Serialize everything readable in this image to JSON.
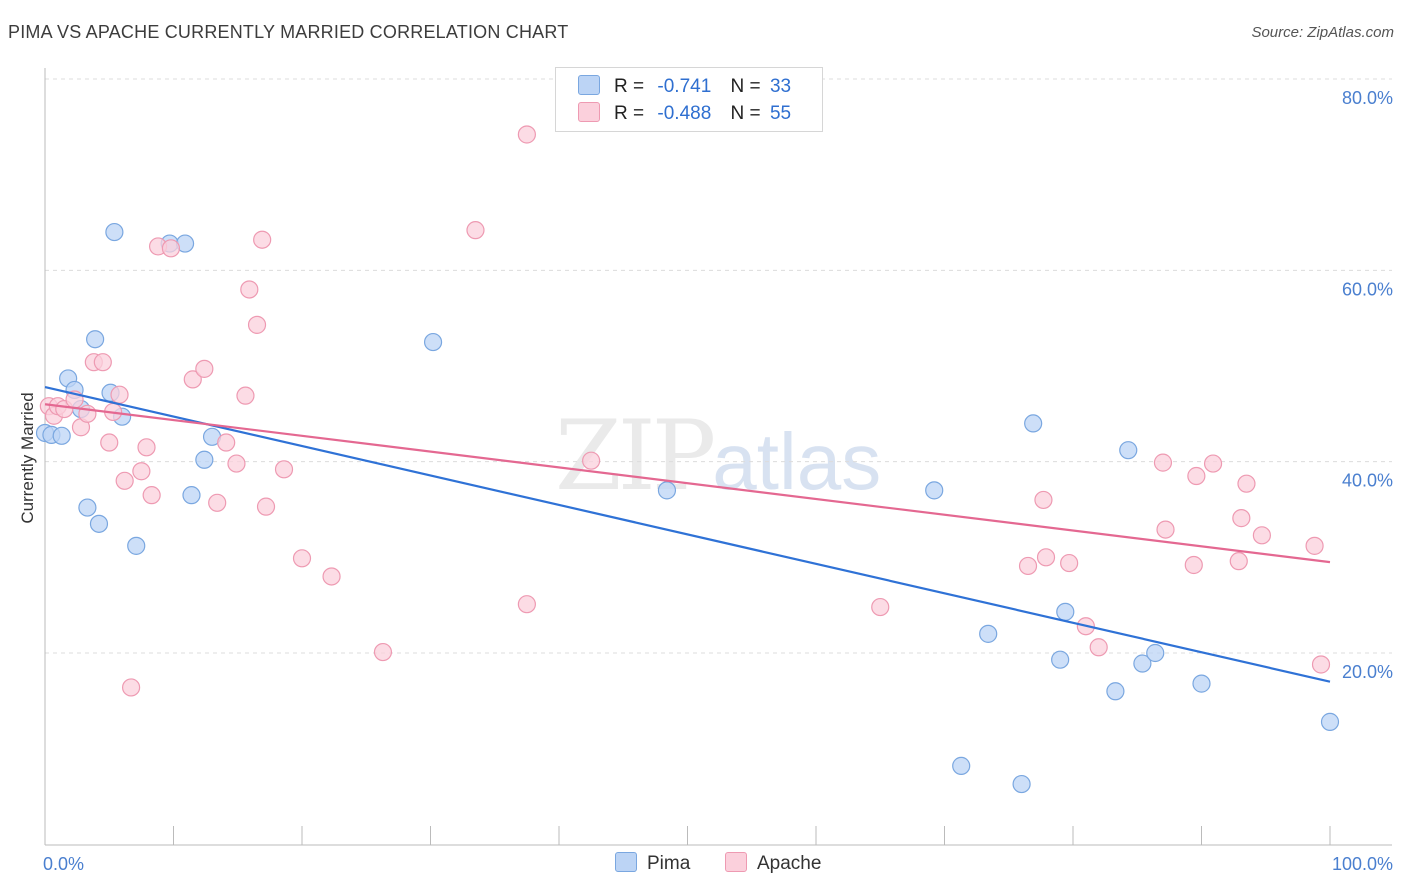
{
  "header": {
    "title": "PIMA VS APACHE CURRENTLY MARRIED CORRELATION CHART",
    "source": "Source: ZipAtlas.com"
  },
  "watermark": {
    "zip": "ZIP",
    "atlas": "atlas"
  },
  "legend": {
    "rows": [
      {
        "r_label": "R =",
        "r_value": "-0.741",
        "n_label": "N =",
        "n_value": "33"
      },
      {
        "r_label": "R =",
        "r_value": "-0.488",
        "n_label": "N =",
        "n_value": "55"
      }
    ]
  },
  "bottom_legend": {
    "pima": "Pima",
    "apache": "Apache"
  },
  "colors": {
    "pima_fill": "#bcd4f5",
    "pima_stroke": "#7aa7e0",
    "pima_line": "#2f72d6",
    "apache_fill": "#fbd0dc",
    "apache_stroke": "#ee9ab2",
    "apache_line": "#e46891",
    "tick_label": "#4a7fcf",
    "grid": "#dcdcdc"
  },
  "chart_data": {
    "type": "scatter",
    "title": "PIMA VS APACHE CURRENTLY MARRIED CORRELATION CHART",
    "xlabel": "",
    "ylabel": "Currently Married",
    "xlim": [
      0,
      100
    ],
    "ylim": [
      0,
      82
    ],
    "x_tick_labels": [
      "0.0%",
      "100.0%"
    ],
    "y_ticks": [
      20,
      40,
      60,
      80
    ],
    "y_tick_labels": [
      "20.0%",
      "40.0%",
      "60.0%",
      "80.0%"
    ],
    "grid": true,
    "legend_position": "top-center",
    "series": [
      {
        "name": "Pima",
        "r": -0.741,
        "n": 33,
        "trend": {
          "x": [
            0,
            100
          ],
          "y": [
            47.8,
            17.0
          ]
        },
        "points": [
          [
            0.0,
            43.0
          ],
          [
            0.5,
            42.8
          ],
          [
            1.3,
            42.7
          ],
          [
            1.8,
            48.7
          ],
          [
            2.3,
            47.5
          ],
          [
            2.8,
            45.5
          ],
          [
            3.3,
            35.2
          ],
          [
            4.2,
            33.5
          ],
          [
            3.9,
            52.8
          ],
          [
            5.1,
            47.2
          ],
          [
            5.4,
            64.0
          ],
          [
            6.0,
            44.7
          ],
          [
            7.1,
            31.2
          ],
          [
            9.7,
            62.8
          ],
          [
            10.9,
            62.8
          ],
          [
            11.4,
            36.5
          ],
          [
            12.4,
            40.2
          ],
          [
            13.0,
            42.6
          ],
          [
            30.2,
            52.5
          ],
          [
            48.4,
            37.0
          ],
          [
            69.2,
            37.0
          ],
          [
            71.3,
            8.2
          ],
          [
            73.4,
            22.0
          ],
          [
            76.0,
            6.3
          ],
          [
            76.9,
            44.0
          ],
          [
            79.0,
            19.3
          ],
          [
            79.4,
            24.3
          ],
          [
            83.3,
            16.0
          ],
          [
            84.3,
            41.2
          ],
          [
            85.4,
            18.9
          ],
          [
            86.4,
            20.0
          ],
          [
            90.0,
            16.8
          ],
          [
            100.0,
            12.8
          ]
        ]
      },
      {
        "name": "Apache",
        "r": -0.488,
        "n": 55,
        "trend": {
          "x": [
            0,
            100
          ],
          "y": [
            46.0,
            29.5
          ]
        },
        "points": [
          [
            0.3,
            45.8
          ],
          [
            0.7,
            44.8
          ],
          [
            1.0,
            45.8
          ],
          [
            1.5,
            45.5
          ],
          [
            2.3,
            46.5
          ],
          [
            2.8,
            43.6
          ],
          [
            3.3,
            45.0
          ],
          [
            3.8,
            50.4
          ],
          [
            4.5,
            50.4
          ],
          [
            5.0,
            42.0
          ],
          [
            5.3,
            45.2
          ],
          [
            5.8,
            47.0
          ],
          [
            6.2,
            38.0
          ],
          [
            6.7,
            16.4
          ],
          [
            7.5,
            39.0
          ],
          [
            7.9,
            41.5
          ],
          [
            8.3,
            36.5
          ],
          [
            8.8,
            62.5
          ],
          [
            9.8,
            62.3
          ],
          [
            11.5,
            48.6
          ],
          [
            12.4,
            49.7
          ],
          [
            13.4,
            35.7
          ],
          [
            14.1,
            42.0
          ],
          [
            14.9,
            39.8
          ],
          [
            15.6,
            46.9
          ],
          [
            15.9,
            58.0
          ],
          [
            16.5,
            54.3
          ],
          [
            16.9,
            63.2
          ],
          [
            17.2,
            35.3
          ],
          [
            18.6,
            39.2
          ],
          [
            20.0,
            29.9
          ],
          [
            22.3,
            28.0
          ],
          [
            26.3,
            20.1
          ],
          [
            33.5,
            64.2
          ],
          [
            37.5,
            74.2
          ],
          [
            37.5,
            25.1
          ],
          [
            42.5,
            40.1
          ],
          [
            65.0,
            24.8
          ],
          [
            76.5,
            29.1
          ],
          [
            77.7,
            36.0
          ],
          [
            77.9,
            30.0
          ],
          [
            79.7,
            29.4
          ],
          [
            81.0,
            22.8
          ],
          [
            82.0,
            20.6
          ],
          [
            87.0,
            39.9
          ],
          [
            87.2,
            32.9
          ],
          [
            89.4,
            29.2
          ],
          [
            89.6,
            38.5
          ],
          [
            90.9,
            39.8
          ],
          [
            92.9,
            29.6
          ],
          [
            93.1,
            34.1
          ],
          [
            93.5,
            37.7
          ],
          [
            94.7,
            32.3
          ],
          [
            98.8,
            31.2
          ],
          [
            99.3,
            18.8
          ]
        ]
      }
    ]
  }
}
